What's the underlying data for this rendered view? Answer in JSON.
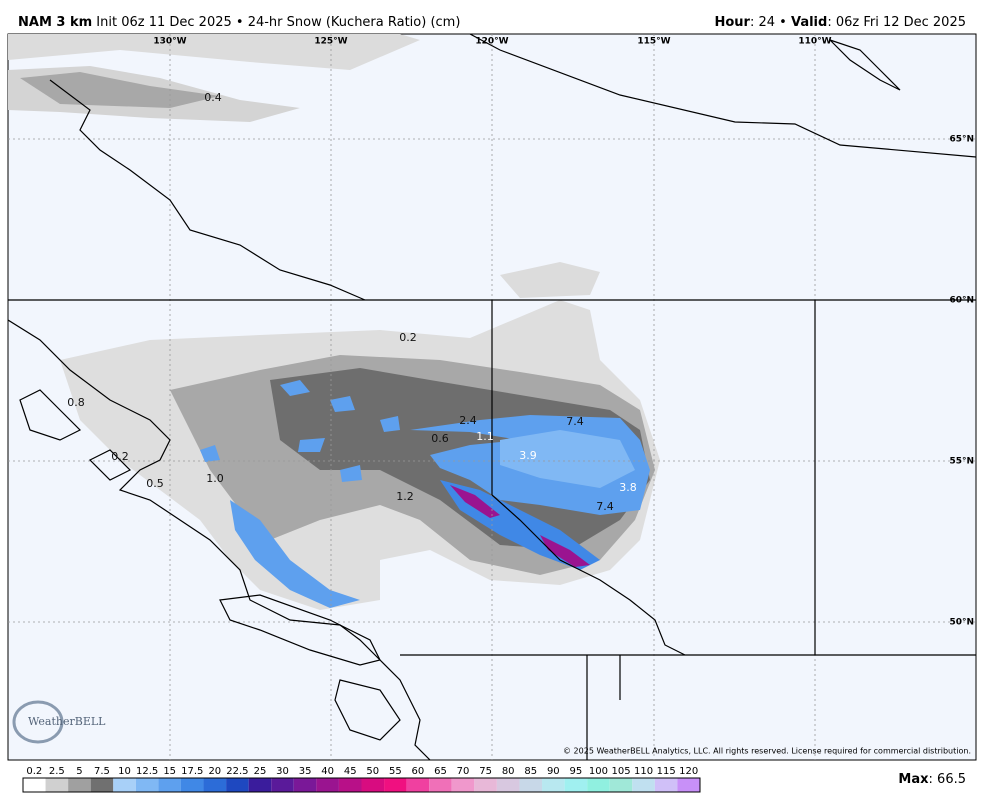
{
  "header": {
    "left": [
      {
        "text": "NAM 3 km",
        "bold": true
      },
      {
        "text": " Init 06z 11 Dec 2025 • 24-hr Snow (Kuchera Ratio) (cm)",
        "bold": false
      }
    ],
    "right": [
      {
        "text": "Hour",
        "bold": true
      },
      {
        "text": ": 24 • ",
        "bold": false
      },
      {
        "text": "Valid",
        "bold": true
      },
      {
        "text": ": 06z Fri 12 Dec 2025",
        "bold": false
      }
    ]
  },
  "map": {
    "lon_labels": [
      "130°W",
      "125°W",
      "120°W",
      "115°W",
      "110°W"
    ],
    "lat_labels": [
      "65°N",
      "60°N",
      "55°N",
      "50°N"
    ],
    "point_labels": [
      "0.4",
      "0.2",
      "2.4",
      "7.4",
      "0.6",
      "1.1",
      "3.9",
      "3.8",
      "7.4",
      "1.2",
      "1.0",
      "0.5",
      "0.2",
      "0.8"
    ],
    "logo": "WeatherBELL",
    "copyright": "© 2025 WeatherBELL Analytics, LLC. All rights reserved. License required for commercial distribution."
  },
  "colorbar": {
    "labels": [
      0.2,
      2.5,
      5,
      7.5,
      10,
      12.5,
      15,
      17.5,
      20,
      22.5,
      25,
      30,
      35,
      40,
      45,
      50,
      55,
      60,
      65,
      70,
      75,
      80,
      85,
      90,
      95,
      100,
      105,
      110,
      115,
      120
    ],
    "colors": [
      "#ffffff",
      "#d0d0d0",
      "#a0a0a0",
      "#707070",
      "#a8d0f8",
      "#80b8f4",
      "#5ea0ee",
      "#4088e6",
      "#2c6cd8",
      "#1e48c0",
      "#3a1c9c",
      "#5a1a9a",
      "#7a1898",
      "#9a1490",
      "#b81088",
      "#d80c80",
      "#f01080",
      "#f040a0",
      "#f070b8",
      "#f098cc",
      "#e8b8d8",
      "#d8c8e0",
      "#c8d8e8",
      "#b8e8f0",
      "#a0f0f0",
      "#90f0e0",
      "#a0e8d8",
      "#c0e0f0",
      "#d0c0f8",
      "#c890f8"
    ]
  },
  "footer": {
    "max": [
      {
        "text": "Max",
        "bold": true
      },
      {
        "text": ": 66.5",
        "bold": false
      }
    ]
  }
}
